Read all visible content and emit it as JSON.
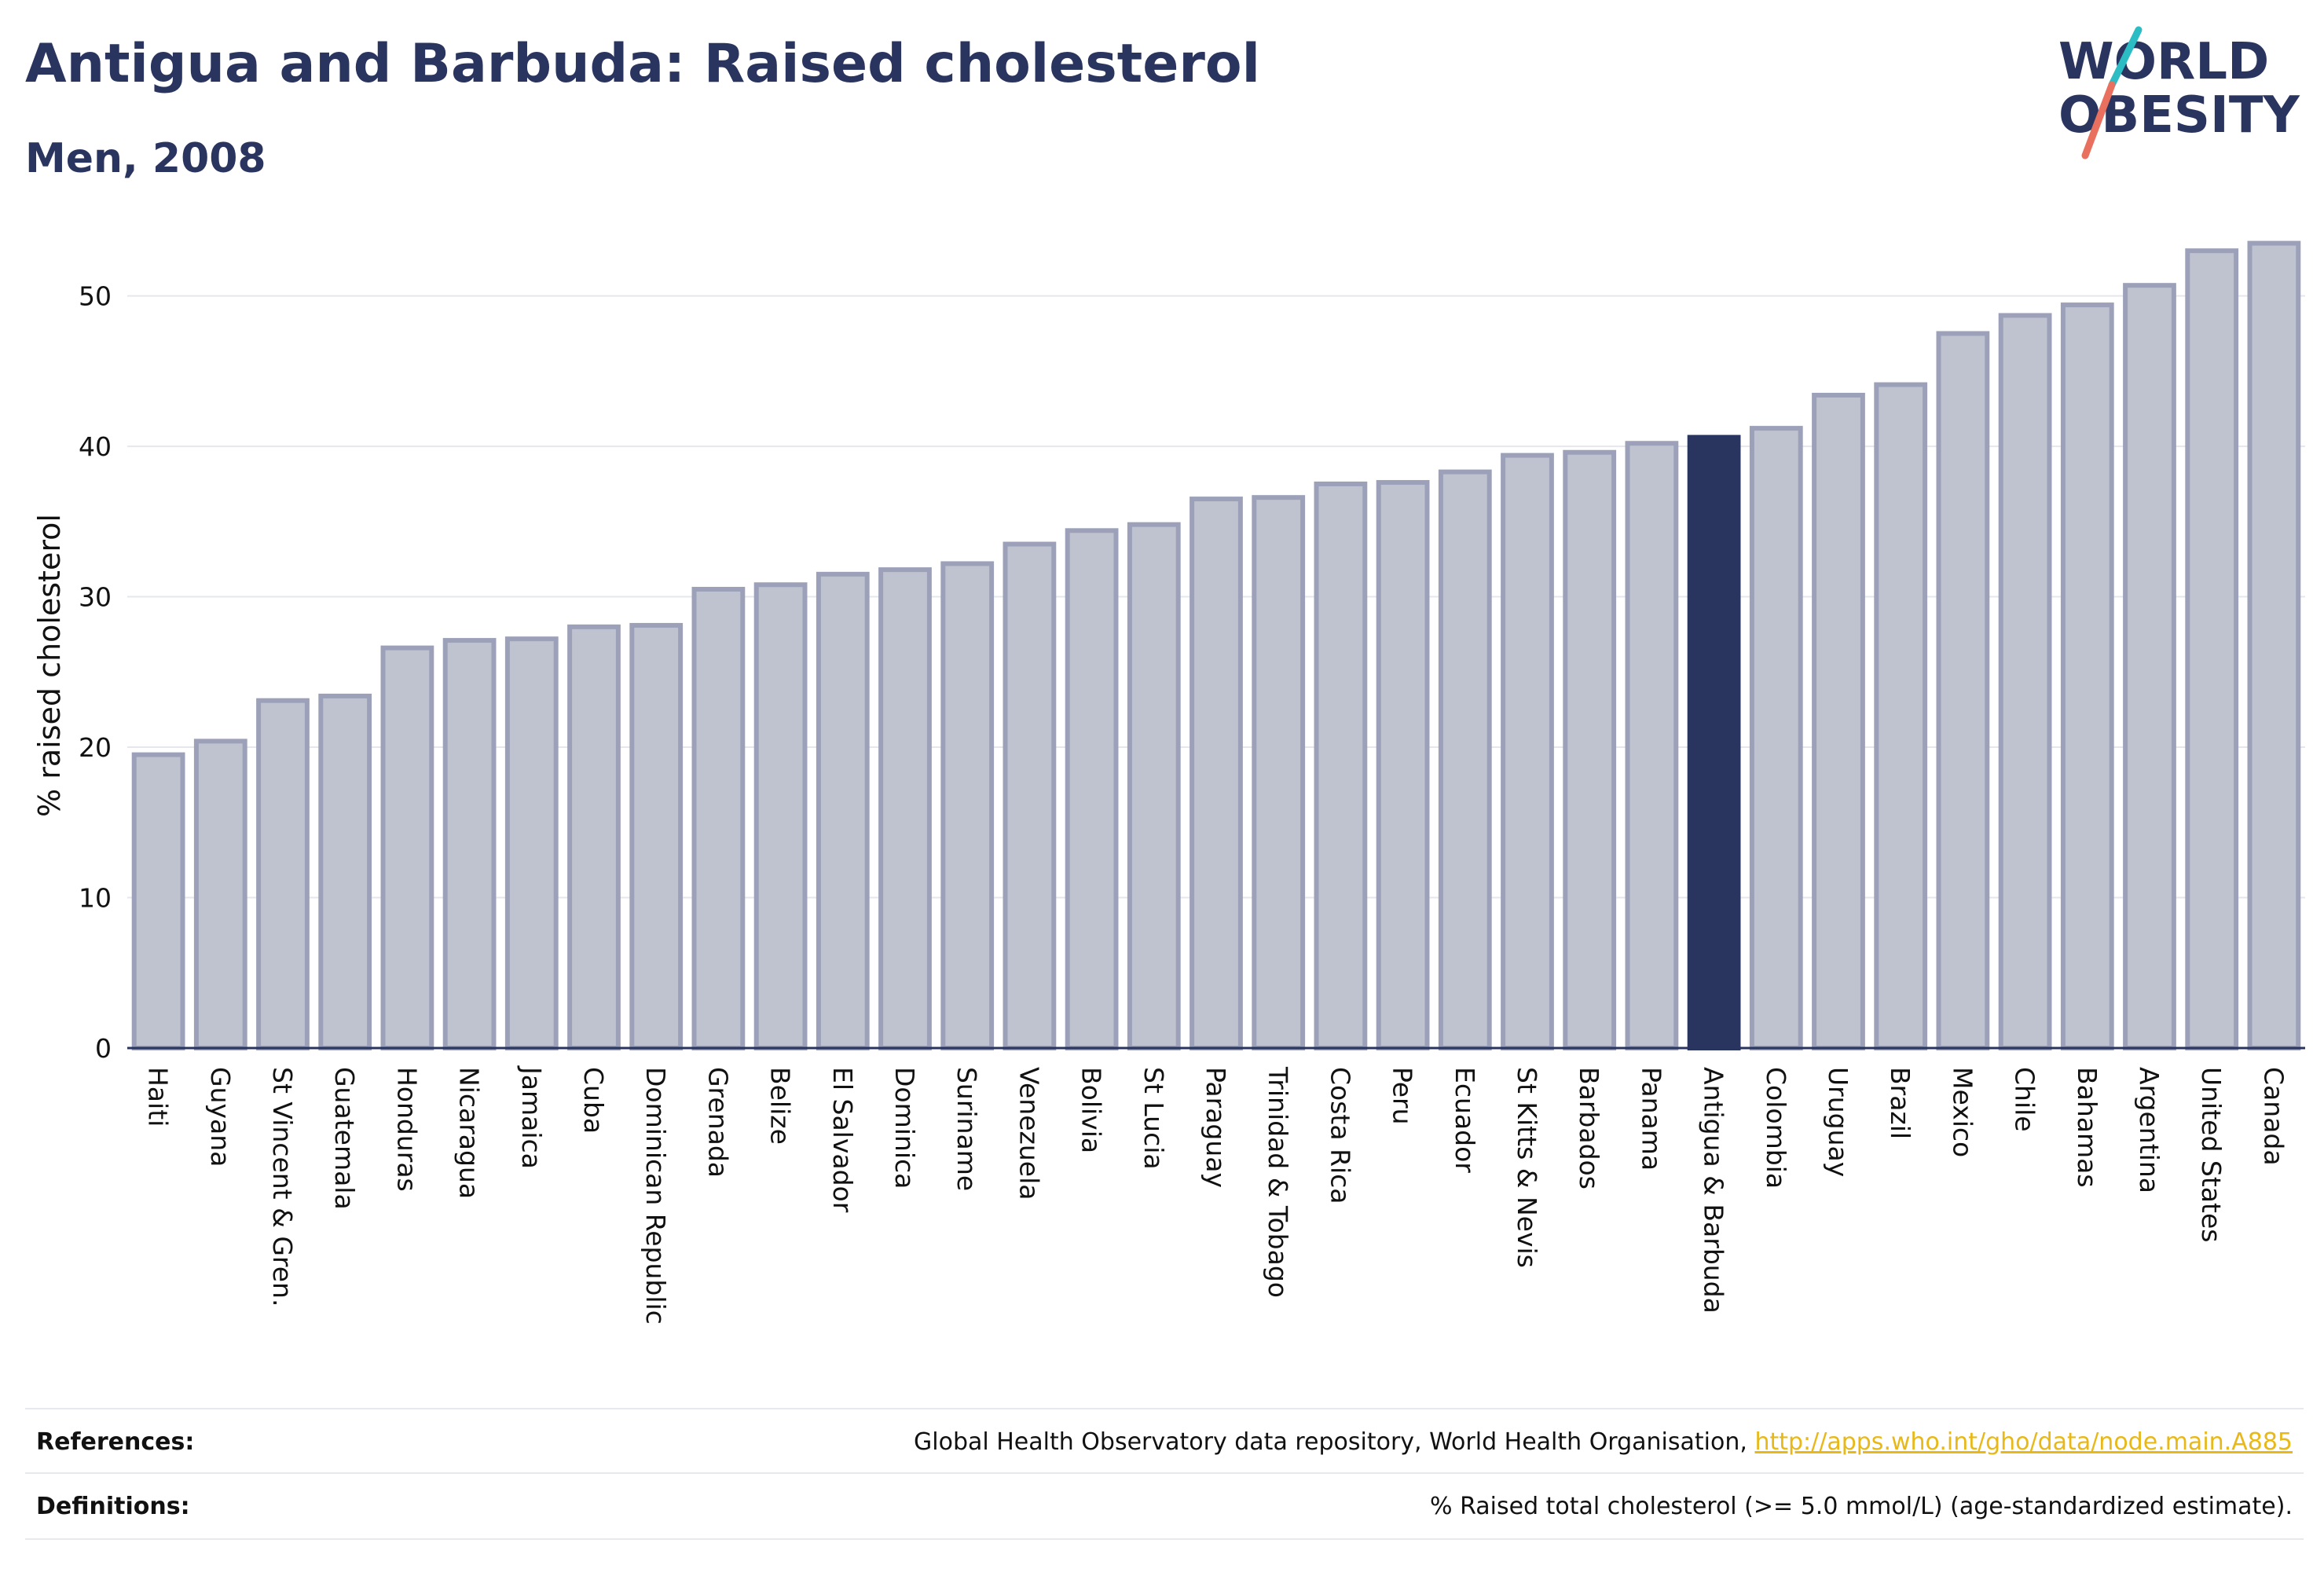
{
  "header": {
    "title": "Antigua and Barbuda: Raised cholesterol",
    "subtitle": "Men, 2008"
  },
  "logo": {
    "line1": "WORLD",
    "line2": "OBESITY",
    "colors": {
      "text": "#2a355f",
      "slash_top": "#2bbcc4",
      "slash_bottom": "#e9705e"
    }
  },
  "colors": {
    "bar_fill": "#bfc2cf",
    "bar_stroke": "#9ca1b9",
    "highlight": "#2a355f",
    "grid": "#e6e7ec",
    "axis": "#2a355f"
  },
  "chart_data": {
    "type": "bar",
    "ylabel": "% raised cholesterol",
    "xlabel": "",
    "ylim": [
      0,
      54
    ],
    "yticks": [
      0,
      10,
      20,
      30,
      40,
      50
    ],
    "grid": true,
    "highlight_category": "Antigua & Barbuda",
    "categories": [
      "Haiti",
      "Guyana",
      "St Vincent & Gren.",
      "Guatemala",
      "Honduras",
      "Nicaragua",
      "Jamaica",
      "Cuba",
      "Dominican Republic",
      "Grenada",
      "Belize",
      "El Salvador",
      "Dominica",
      "Suriname",
      "Venezuela",
      "Bolivia",
      "St Lucia",
      "Paraguay",
      "Trinidad & Tobago",
      "Costa Rica",
      "Peru",
      "Ecuador",
      "St Kitts & Nevis",
      "Barbados",
      "Panama",
      "Antigua & Barbuda",
      "Colombia",
      "Uruguay",
      "Brazil",
      "Mexico",
      "Chile",
      "Bahamas",
      "Argentina",
      "United States",
      "Canada"
    ],
    "values": [
      19.5,
      20.4,
      23.1,
      23.4,
      26.6,
      27.1,
      27.2,
      28.0,
      28.1,
      30.5,
      30.8,
      31.5,
      31.8,
      32.2,
      33.5,
      34.4,
      34.8,
      36.5,
      36.6,
      37.5,
      37.6,
      38.3,
      39.4,
      39.6,
      40.2,
      40.6,
      41.2,
      43.4,
      44.1,
      47.5,
      48.7,
      49.4,
      50.7,
      53.0,
      53.5
    ]
  },
  "footer": {
    "references_label": "References:",
    "references_text": "Global Health Observatory data repository, World Health Organisation, ",
    "references_link": "http://apps.who.int/gho/data/node.main.A885",
    "definitions_label": "Definitions:",
    "definitions_text": "% Raised total cholesterol (>= 5.0 mmol/L) (age-standardized estimate)."
  }
}
